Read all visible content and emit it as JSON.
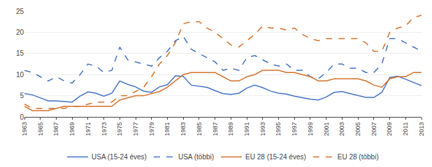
{
  "chart_data": {
    "type": "line",
    "x": [
      1963,
      1964,
      1965,
      1966,
      1967,
      1968,
      1969,
      1970,
      1971,
      1972,
      1973,
      1974,
      1975,
      1976,
      1977,
      1978,
      1979,
      1980,
      1981,
      1982,
      1983,
      1984,
      1985,
      1986,
      1987,
      1988,
      1989,
      1990,
      1991,
      1992,
      1993,
      1994,
      1995,
      1996,
      1997,
      1998,
      1999,
      2000,
      2001,
      2002,
      2003,
      2004,
      2005,
      2006,
      2007,
      2008,
      2009,
      2010,
      2011,
      2012,
      2013
    ],
    "series": [
      {
        "name": "USA (15-24 éves)",
        "color": "#4472c4",
        "line_style": "solid",
        "values": [
          5.5,
          5.2,
          4.5,
          3.8,
          3.8,
          3.6,
          3.5,
          4.9,
          5.9,
          5.6,
          4.9,
          5.6,
          8.5,
          7.7,
          7.1,
          6.1,
          5.8,
          7.1,
          7.6,
          9.7,
          9.6,
          7.5,
          7.2,
          7.0,
          6.2,
          5.5,
          5.3,
          5.6,
          6.8,
          7.5,
          6.9,
          6.1,
          5.6,
          5.4,
          4.9,
          4.5,
          4.2,
          4.0,
          4.7,
          5.8,
          6.0,
          5.5,
          5.1,
          4.6,
          4.6,
          5.8,
          9.3,
          9.6,
          8.9,
          8.1,
          7.4
        ]
      },
      {
        "name": "USA (többi)",
        "color": "#4472c4",
        "line_style": "dashed",
        "values": [
          11.0,
          10.5,
          9.5,
          8.5,
          9.5,
          8.5,
          8.0,
          10.0,
          12.5,
          12.0,
          10.5,
          11.0,
          16.5,
          13.5,
          13.0,
          12.5,
          12.0,
          14.0,
          15.5,
          18.0,
          19.0,
          16.0,
          15.0,
          14.0,
          13.0,
          11.0,
          11.5,
          11.0,
          14.0,
          14.5,
          13.5,
          12.5,
          12.0,
          12.5,
          11.0,
          11.0,
          9.5,
          9.0,
          10.5,
          12.5,
          12.5,
          11.5,
          11.5,
          10.5,
          10.5,
          12.5,
          18.5,
          18.5,
          17.5,
          16.5,
          15.5
        ]
      },
      {
        "name": "EU 28 (15-24 éves)",
        "color": "#d4702a",
        "line_style": "solid",
        "values": [
          2.5,
          1.5,
          1.5,
          1.5,
          2.0,
          2.5,
          2.5,
          2.5,
          2.5,
          2.5,
          2.5,
          2.5,
          4.0,
          4.5,
          5.0,
          5.0,
          5.5,
          6.0,
          7.0,
          8.5,
          10.0,
          10.5,
          10.5,
          10.5,
          10.5,
          9.5,
          8.5,
          8.5,
          9.5,
          10.0,
          11.0,
          11.0,
          11.0,
          10.5,
          10.5,
          10.0,
          9.5,
          8.5,
          8.5,
          9.0,
          9.0,
          9.0,
          9.0,
          8.5,
          7.5,
          7.0,
          9.0,
          9.5,
          9.5,
          10.5,
          10.5
        ]
      },
      {
        "name": "EU 28 (többi)",
        "color": "#d4702a",
        "line_style": "dashed",
        "values": [
          3.0,
          2.0,
          2.0,
          2.0,
          2.0,
          2.0,
          2.5,
          2.5,
          3.0,
          3.5,
          3.5,
          3.5,
          5.0,
          5.0,
          6.0,
          7.0,
          9.5,
          12.5,
          14.5,
          17.5,
          22.0,
          22.5,
          22.5,
          21.0,
          20.0,
          18.5,
          17.0,
          16.5,
          18.0,
          19.5,
          21.5,
          21.0,
          21.0,
          20.5,
          21.0,
          19.5,
          18.5,
          18.0,
          18.5,
          18.5,
          18.5,
          18.5,
          18.5,
          17.5,
          15.5,
          15.5,
          20.0,
          21.0,
          21.5,
          23.5,
          24.0
        ]
      }
    ],
    "xlim": [
      1963,
      2013
    ],
    "xticks": [
      1963,
      1965,
      1967,
      1969,
      1971,
      1973,
      1975,
      1977,
      1979,
      1981,
      1983,
      1985,
      1987,
      1989,
      1991,
      1993,
      1995,
      1997,
      1999,
      2001,
      2003,
      2005,
      2007,
      2009,
      2011,
      2013
    ],
    "ylim": [
      0,
      25
    ],
    "yticks": [
      0,
      5,
      10,
      15,
      20,
      25
    ],
    "grid": true,
    "legend": "bottom"
  }
}
